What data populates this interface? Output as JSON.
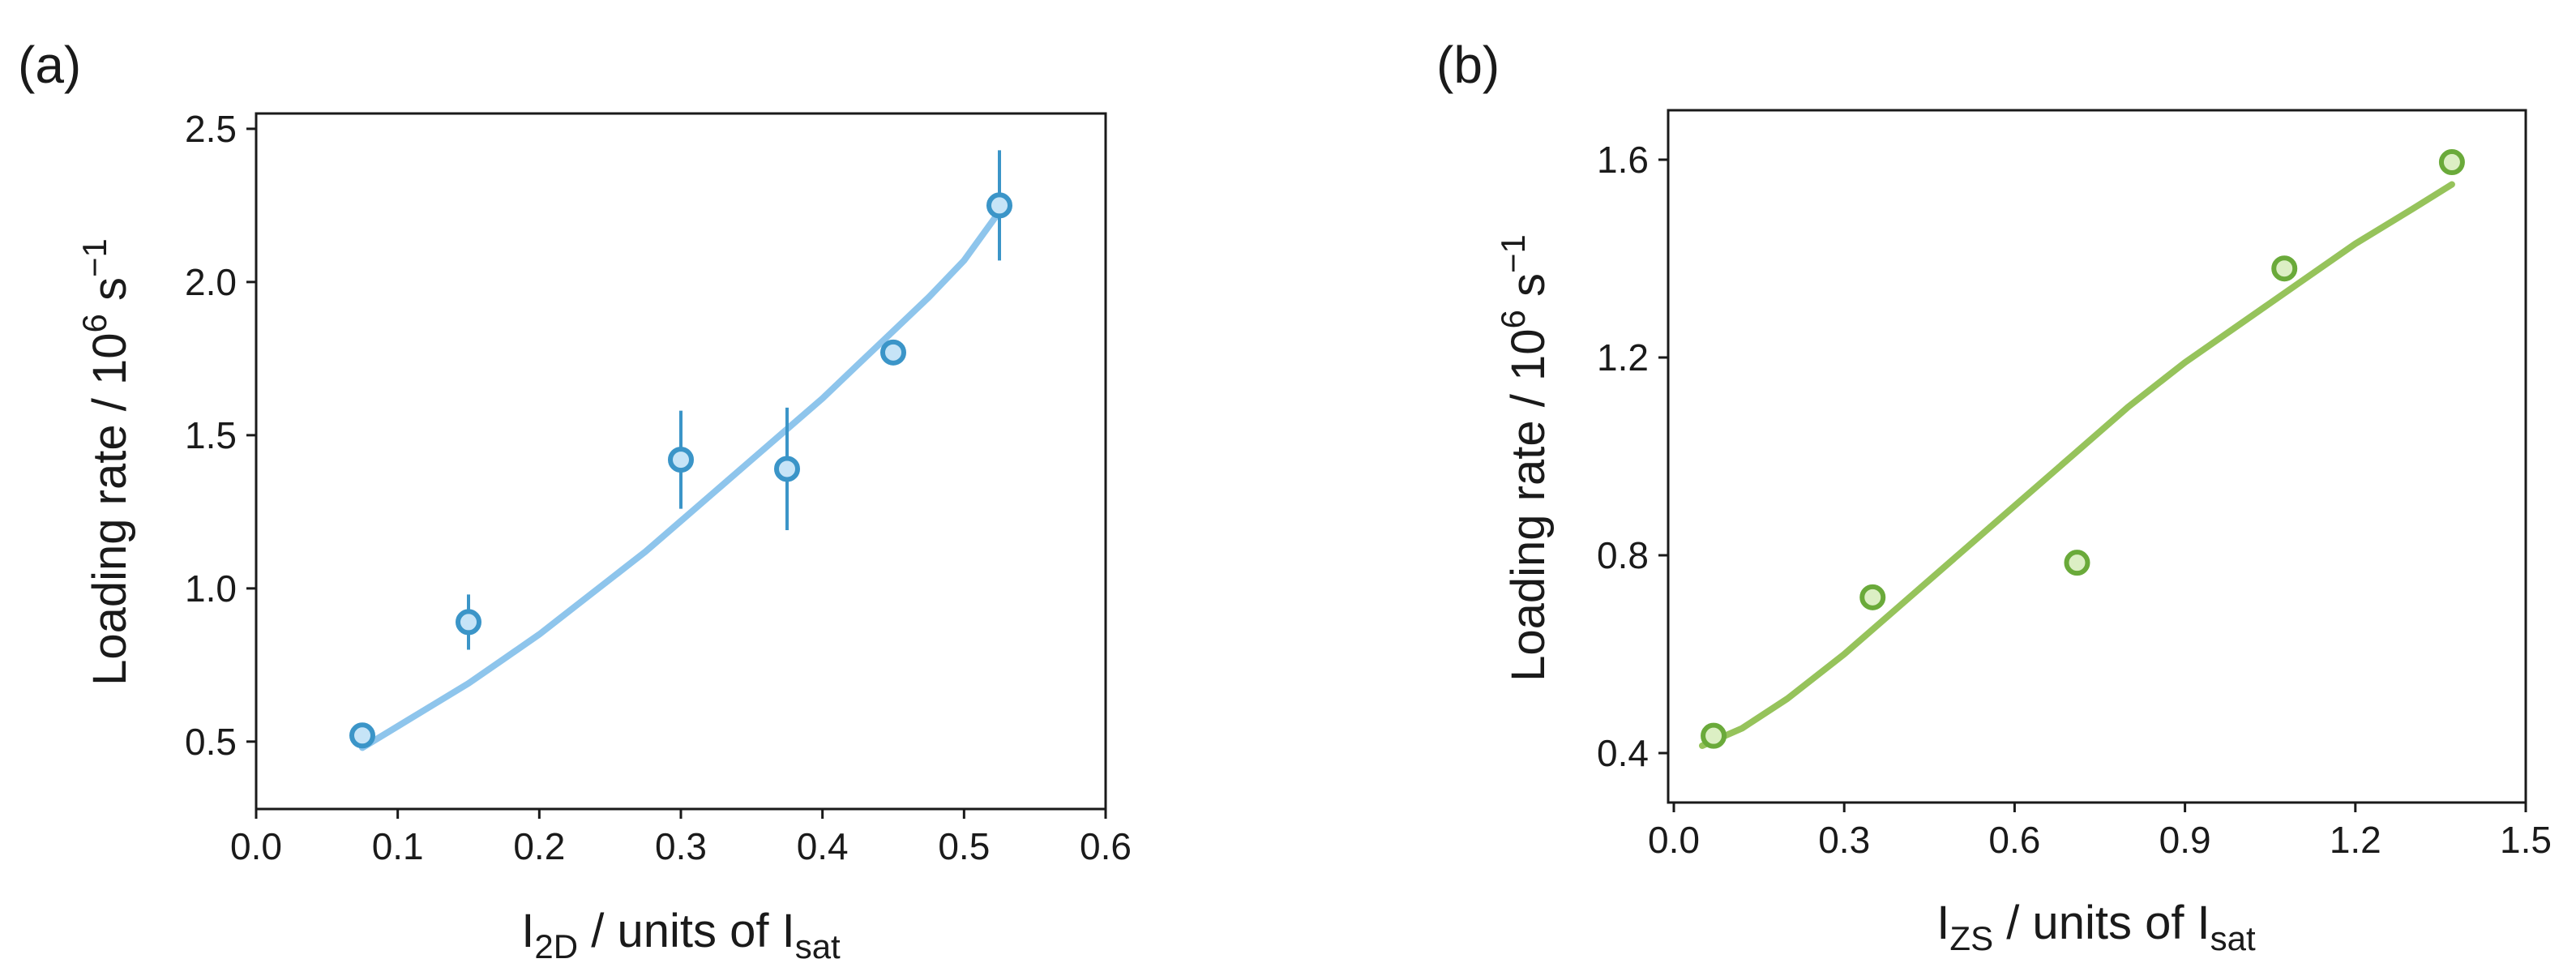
{
  "colors": {
    "a_line": "#8ec5ec",
    "a_marker_edge": "#3b95c8",
    "a_marker_fill": "#c6e4f7",
    "a_errorbar": "#3b95c8",
    "b_line": "#96c35b",
    "b_marker_edge": "#6aaa3a",
    "b_marker_fill": "#dcefc4",
    "axis": "#1a1a1a"
  },
  "chart_data": [
    {
      "id": "a",
      "type": "scatter",
      "panel_label": "(a)",
      "xlabel": {
        "main": "I",
        "sub": "2D",
        "mid": " / units of I",
        "sub2": "sat"
      },
      "ylabel": {
        "main": "Loading rate / 10",
        "sup": "6",
        "mid": " s",
        "sup2": "−1"
      },
      "xlim": [
        0.0,
        0.6
      ],
      "ylim": [
        0.28,
        2.55
      ],
      "xticks": [
        0.0,
        0.1,
        0.2,
        0.3,
        0.4,
        0.5,
        0.6
      ],
      "xtick_labels": [
        "0.0",
        "0.1",
        "0.2",
        "0.3",
        "0.4",
        "0.5",
        "0.6"
      ],
      "yticks": [
        0.5,
        1.0,
        1.5,
        2.0,
        2.5
      ],
      "ytick_labels": [
        "0.5",
        "1.0",
        "1.5",
        "2.0",
        "2.5"
      ],
      "points": [
        {
          "x": 0.075,
          "y": 0.52,
          "err": 0.0
        },
        {
          "x": 0.15,
          "y": 0.89,
          "err": 0.09
        },
        {
          "x": 0.3,
          "y": 1.42,
          "err": 0.16
        },
        {
          "x": 0.375,
          "y": 1.39,
          "err": 0.2
        },
        {
          "x": 0.45,
          "y": 1.77,
          "err": 0.0
        },
        {
          "x": 0.525,
          "y": 2.25,
          "err": 0.18
        }
      ],
      "fit": {
        "x": [
          0.075,
          0.1,
          0.125,
          0.15,
          0.175,
          0.2,
          0.225,
          0.25,
          0.275,
          0.3,
          0.325,
          0.35,
          0.375,
          0.4,
          0.425,
          0.45,
          0.475,
          0.5,
          0.525
        ],
        "y": [
          0.48,
          0.55,
          0.62,
          0.69,
          0.77,
          0.85,
          0.94,
          1.03,
          1.12,
          1.22,
          1.32,
          1.42,
          1.52,
          1.62,
          1.73,
          1.84,
          1.95,
          2.07,
          2.23
        ]
      }
    },
    {
      "id": "b",
      "type": "scatter",
      "panel_label": "(b)",
      "xlabel": {
        "main": "I",
        "sub": "ZS",
        "mid": " / units of I",
        "sub2": "sat"
      },
      "ylabel": {
        "main": "Loading rate / 10",
        "sup": "6",
        "mid": " s",
        "sup2": "−1"
      },
      "xlim": [
        -0.01,
        1.5
      ],
      "ylim": [
        0.3,
        1.7
      ],
      "xticks": [
        0.0,
        0.3,
        0.6,
        0.9,
        1.2,
        1.5
      ],
      "xtick_labels": [
        "0.0",
        "0.3",
        "0.6",
        "0.9",
        "1.2",
        "1.5"
      ],
      "yticks": [
        0.4,
        0.8,
        1.2,
        1.6
      ],
      "ytick_labels": [
        "0.4",
        "0.8",
        "1.2",
        "1.6"
      ],
      "points": [
        {
          "x": 0.07,
          "y": 0.435
        },
        {
          "x": 0.35,
          "y": 0.715
        },
        {
          "x": 0.71,
          "y": 0.785
        },
        {
          "x": 1.075,
          "y": 1.38
        },
        {
          "x": 1.37,
          "y": 1.595
        }
      ],
      "fit": {
        "x": [
          0.05,
          0.12,
          0.2,
          0.3,
          0.4,
          0.5,
          0.6,
          0.7,
          0.8,
          0.9,
          1.0,
          1.1,
          1.2,
          1.3,
          1.37
        ],
        "y": [
          0.415,
          0.45,
          0.51,
          0.6,
          0.7,
          0.8,
          0.9,
          1.0,
          1.1,
          1.19,
          1.27,
          1.35,
          1.43,
          1.5,
          1.55
        ]
      }
    }
  ]
}
